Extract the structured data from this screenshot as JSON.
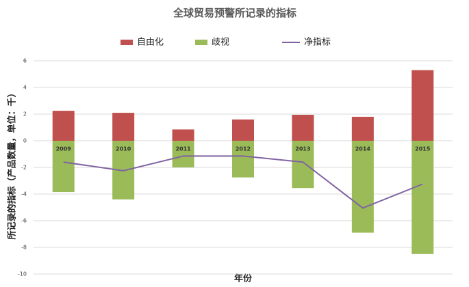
{
  "chart_data": {
    "type": "bar",
    "stacked": true,
    "title": "全球贸易预警所记录的指标",
    "x_label": "年份",
    "y_label": "所记录的指标（产品数量，单位：千）",
    "categories": [
      "2009",
      "2010",
      "2011",
      "2012",
      "2013",
      "2014",
      "2015"
    ],
    "series": [
      {
        "name": "自由化",
        "type": "bar",
        "color": "#c0504d",
        "values": [
          2.25,
          2.1,
          0.85,
          1.6,
          1.95,
          1.8,
          5.3
        ]
      },
      {
        "name": "歧视",
        "type": "bar",
        "color": "#9bbb59",
        "values": [
          -3.85,
          -4.4,
          -2.0,
          -2.75,
          -3.55,
          -6.9,
          -8.5
        ]
      },
      {
        "name": "净指标",
        "type": "line",
        "color": "#8064a2",
        "values": [
          -1.6,
          -2.25,
          -1.15,
          -1.15,
          -1.6,
          -5.05,
          -3.25
        ]
      }
    ],
    "ylim": [
      -10,
      6
    ],
    "yticks": [
      -10,
      -8,
      -6,
      -4,
      -2,
      0,
      2,
      4,
      6
    ],
    "grid": true
  }
}
